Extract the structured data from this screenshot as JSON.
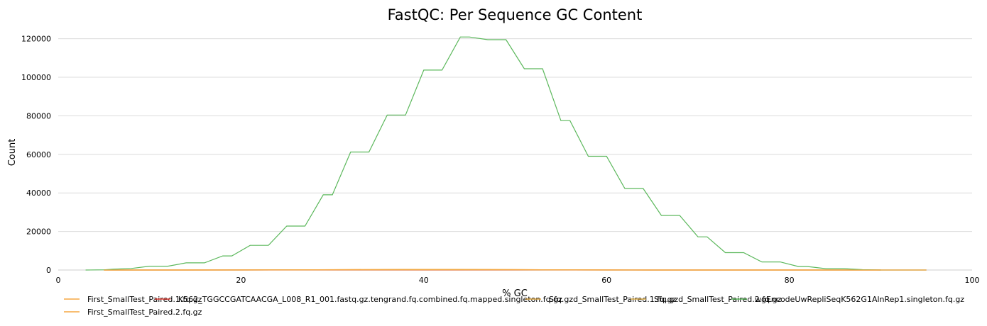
{
  "chart_data": {
    "type": "line",
    "title": "FastQC: Per Sequence GC Content",
    "xlabel": "% GC",
    "ylabel": "Count",
    "xlim": [
      0,
      100
    ],
    "ylim": [
      0,
      125000
    ],
    "x_ticks": [
      0,
      20,
      40,
      60,
      80,
      100
    ],
    "y_ticks": [
      0,
      20000,
      40000,
      60000,
      80000,
      100000,
      120000
    ],
    "grid": true,
    "legend_position": "bottom-left",
    "series": [
      {
        "name": "First_SmallTest_Paired.1.fq.gz",
        "color": "#f5a742",
        "x": [
          5,
          10,
          20,
          25,
          30,
          35,
          38,
          40,
          45,
          50,
          55,
          60,
          65,
          70,
          75,
          80,
          90
        ],
        "y": [
          0,
          0,
          20,
          60,
          150,
          250,
          300,
          300,
          280,
          200,
          100,
          40,
          10,
          0,
          0,
          0,
          0
        ]
      },
      {
        "name": "K562_TGGCCGATCAACGA_L008_R1_001.fastq.gz.tengrand.fq.combined.fq.mapped.singleton.fq.gz",
        "color": "#e8453c",
        "x": [
          5,
          20,
          40,
          60,
          80,
          95
        ],
        "y": [
          0,
          0,
          0,
          0,
          0,
          0
        ]
      },
      {
        "name": "Sfq.gzd_SmallTest_Paired.1.fq.gz",
        "color": "#d9a23e",
        "x": [
          5,
          20,
          30,
          40,
          50,
          60,
          80,
          95
        ],
        "y": [
          0,
          0,
          100,
          150,
          100,
          0,
          0,
          0
        ]
      },
      {
        "name": "Sfq.gzd_SmallTest_Paired.2.fq.gz",
        "color": "#e0b04a",
        "x": [
          5,
          20,
          30,
          40,
          50,
          60,
          80,
          95
        ],
        "y": [
          0,
          0,
          120,
          180,
          110,
          10,
          0,
          0
        ]
      },
      {
        "name": "wgEncodeUwRepliSeqK562G1AlnRep1.singleton.fq.gz",
        "color": "#5cb85c",
        "x": [
          3,
          5,
          6,
          8,
          10,
          12,
          14,
          16,
          18,
          19,
          21,
          23,
          25,
          27,
          29,
          30,
          32,
          34,
          36,
          38,
          40,
          42,
          44,
          45,
          47,
          49,
          51,
          53,
          55,
          56,
          58,
          60,
          62,
          64,
          66,
          68,
          70,
          71,
          73,
          75,
          77,
          79,
          81,
          82,
          84,
          86,
          88,
          90
        ],
        "y": [
          0,
          100,
          400,
          800,
          2000,
          2000,
          3700,
          3700,
          7300,
          7300,
          12800,
          12800,
          22800,
          22800,
          39000,
          39000,
          61200,
          61200,
          80400,
          80400,
          103700,
          103700,
          120900,
          120900,
          119500,
          119500,
          104400,
          104400,
          77500,
          77500,
          59000,
          59000,
          42300,
          42300,
          28300,
          28300,
          17200,
          17200,
          9000,
          9000,
          4200,
          4200,
          1800,
          1800,
          700,
          700,
          200,
          0
        ]
      },
      {
        "name": "First_SmallTest_Paired.2.fq.gz",
        "color": "#f5a742",
        "x": [
          5,
          10,
          20,
          25,
          30,
          35,
          38,
          40,
          45,
          50,
          55,
          60,
          65,
          70,
          75,
          80,
          90
        ],
        "y": [
          0,
          0,
          25,
          70,
          170,
          270,
          320,
          320,
          300,
          220,
          110,
          45,
          12,
          0,
          0,
          0,
          0
        ]
      }
    ]
  }
}
